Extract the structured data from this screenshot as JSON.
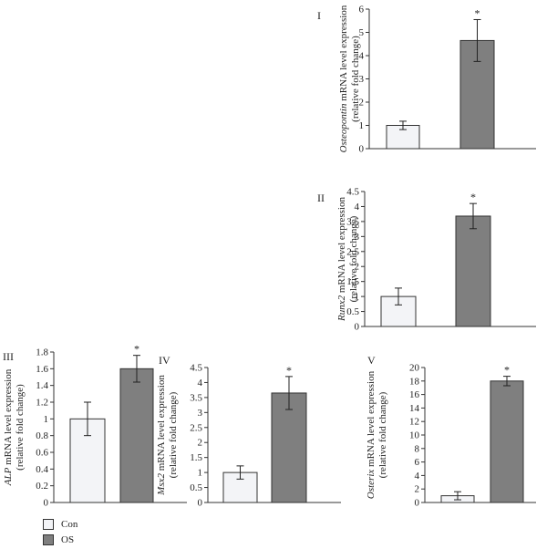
{
  "legend": {
    "con_label": "Con",
    "os_label": "OS",
    "con_color": "#f3f4f7",
    "os_color": "#7f7f7f"
  },
  "chart_data": [
    {
      "id": "I",
      "type": "bar",
      "panel_label": "I",
      "ylabel_gene": "Osteopontin",
      "ylabel_rest": " mRNA level expression",
      "ylabel2": "(relative fold change)",
      "categories": [
        "Con",
        "OS"
      ],
      "values": [
        1.0,
        4.65
      ],
      "errors": [
        0.18,
        0.9
      ],
      "significance": [
        "",
        "*"
      ],
      "ylim": [
        0,
        6
      ],
      "yticks": [
        "0",
        "1",
        "2",
        "3",
        "4",
        "5",
        "6"
      ]
    },
    {
      "id": "II",
      "type": "bar",
      "panel_label": "II",
      "ylabel_gene": "Runx2",
      "ylabel_rest": " mRNA level expression",
      "ylabel2": "(relative fold change)",
      "categories": [
        "Con",
        "OS"
      ],
      "values": [
        1.0,
        3.68
      ],
      "errors": [
        0.28,
        0.42
      ],
      "significance": [
        "",
        "*"
      ],
      "ylim": [
        0,
        4.5
      ],
      "yticks": [
        "0",
        "0.5",
        "1",
        "1.5",
        "2",
        "2.5",
        "3",
        "3.5",
        "4",
        "4.5"
      ]
    },
    {
      "id": "III",
      "type": "bar",
      "panel_label": "III",
      "ylabel_gene": "ALP",
      "ylabel_rest": " mRNA level expression",
      "ylabel2": "(relative fold change)",
      "categories": [
        "Con",
        "OS"
      ],
      "values": [
        1.0,
        1.6
      ],
      "errors": [
        0.2,
        0.16
      ],
      "significance": [
        "",
        "*"
      ],
      "ylim": [
        0,
        1.8
      ],
      "yticks": [
        "0",
        "0.2",
        "0.4",
        "0.6",
        "0.8",
        "1",
        "1.2",
        "1.4",
        "1.6",
        "1.8"
      ]
    },
    {
      "id": "IV",
      "type": "bar",
      "panel_label": "IV",
      "ylabel_gene": "Msx2",
      "ylabel_rest": " mRNA level expression",
      "ylabel2": "(relative fold change)",
      "categories": [
        "Con",
        "OS"
      ],
      "values": [
        1.0,
        3.65
      ],
      "errors": [
        0.22,
        0.55
      ],
      "significance": [
        "",
        "*"
      ],
      "ylim": [
        0,
        4.5
      ],
      "yticks": [
        "0",
        "0.5",
        "1",
        "1.5",
        "2",
        "2.5",
        "3",
        "3.5",
        "4",
        "4.5"
      ]
    },
    {
      "id": "V",
      "type": "bar",
      "panel_label": "V",
      "ylabel_gene": "Osterix",
      "ylabel_rest": " mRNA level expression",
      "ylabel2": "(relative fold change)",
      "categories": [
        "Con",
        "OS"
      ],
      "values": [
        1.0,
        18.0
      ],
      "errors": [
        0.6,
        0.7
      ],
      "significance": [
        "",
        "*"
      ],
      "ylim": [
        0,
        20
      ],
      "yticks": [
        "0",
        "2",
        "4",
        "6",
        "8",
        "10",
        "12",
        "14",
        "16",
        "18",
        "20"
      ]
    }
  ]
}
